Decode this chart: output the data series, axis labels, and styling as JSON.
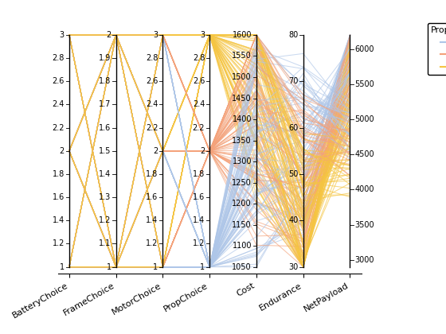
{
  "columns": [
    "BatteryChoice",
    "FrameChoice",
    "MotorChoice",
    "PropChoice",
    "Cost",
    "Endurance",
    "NetPayload"
  ],
  "col_ranges": {
    "BatteryChoice": [
      1,
      3
    ],
    "FrameChoice": [
      1,
      2
    ],
    "MotorChoice": [
      1,
      3
    ],
    "PropChoice": [
      1,
      3
    ],
    "Cost": [
      1050,
      1600
    ],
    "Endurance": [
      30,
      80
    ],
    "NetPayload": [
      2900,
      6200
    ]
  },
  "col_ticks": {
    "BatteryChoice": [
      1,
      1.2,
      1.4,
      1.6,
      1.8,
      2,
      2.2,
      2.4,
      2.6,
      2.8,
      3
    ],
    "FrameChoice": [
      1,
      1.1,
      1.2,
      1.3,
      1.4,
      1.5,
      1.6,
      1.7,
      1.8,
      1.9,
      2
    ],
    "MotorChoice": [
      1,
      1.2,
      1.4,
      1.6,
      1.8,
      2,
      2.2,
      2.4,
      2.6,
      2.8,
      3
    ],
    "PropChoice": [
      1,
      1.2,
      1.4,
      1.6,
      1.8,
      2,
      2.2,
      2.4,
      2.6,
      2.8,
      3
    ],
    "Cost": [
      1050,
      1100,
      1150,
      1200,
      1250,
      1300,
      1350,
      1400,
      1450,
      1500,
      1550,
      1600
    ],
    "Endurance": [
      30,
      40,
      50,
      60,
      70,
      80
    ],
    "NetPayload": [
      3000,
      3500,
      4000,
      4500,
      5000,
      5500,
      6000
    ]
  },
  "colors": {
    "1": "#aec6e8",
    "2": "#f4a27a",
    "3": "#f5c542"
  },
  "legend_title": "PropChoice",
  "background": "#ffffff",
  "figsize": [
    5.6,
    4.2
  ],
  "dpi": 100
}
